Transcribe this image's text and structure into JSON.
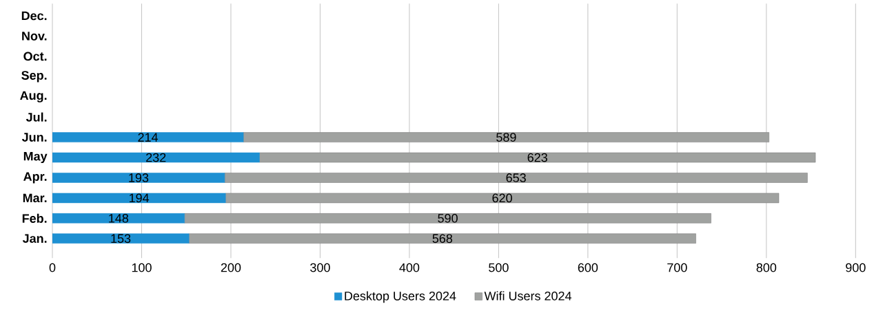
{
  "chart_data": {
    "type": "bar",
    "orientation": "horizontal",
    "stacked": true,
    "categories": [
      "Dec.",
      "Nov.",
      "Oct.",
      "Sep.",
      "Aug.",
      "Jul.",
      "Jun.",
      "May",
      "Apr.",
      "Mar.",
      "Feb.",
      "Jan."
    ],
    "series": [
      {
        "name": "Desktop Users 2024",
        "color": "#1e90d2",
        "values": [
          null,
          null,
          null,
          null,
          null,
          null,
          214,
          232,
          193,
          194,
          148,
          153
        ]
      },
      {
        "name": "Wifi Users 2024",
        "color": "#a0a2a0",
        "values": [
          null,
          null,
          null,
          null,
          null,
          null,
          589,
          623,
          653,
          620,
          590,
          568
        ]
      }
    ],
    "xlim": [
      0,
      900
    ],
    "xticks": [
      0,
      100,
      200,
      300,
      400,
      500,
      600,
      700,
      800,
      900
    ],
    "grid": "x",
    "legend": "bottom",
    "data_labels": true
  }
}
